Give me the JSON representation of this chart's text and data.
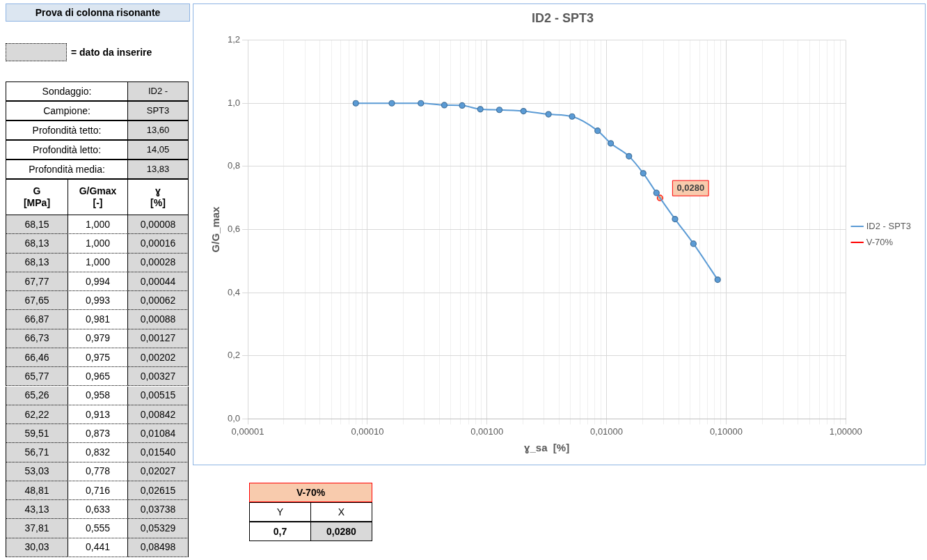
{
  "chart_data": {
    "type": "line",
    "title": "ID2 - SPT3",
    "xlabel": "ɣ_sa  [%]",
    "ylabel": "G/G_max",
    "log": "x",
    "grid": true,
    "legend": "right",
    "marker": "circle",
    "xlim": [
      1e-05,
      1
    ],
    "xticks": [
      {
        "value": 1e-05,
        "label": "0,00001"
      },
      {
        "value": 2e-05,
        "label": null
      },
      {
        "value": 3e-05,
        "label": null
      },
      {
        "value": 4e-05,
        "label": null
      },
      {
        "value": 5e-05,
        "label": null
      },
      {
        "value": 6e-05,
        "label": null
      },
      {
        "value": 7e-05,
        "label": null
      },
      {
        "value": 8e-05,
        "label": null
      },
      {
        "value": 9e-05,
        "label": null
      },
      {
        "value": 0.0001,
        "label": "0,00010"
      },
      {
        "value": 0.0002,
        "label": null
      },
      {
        "value": 0.0003,
        "label": null
      },
      {
        "value": 0.0004,
        "label": null
      },
      {
        "value": 0.0005,
        "label": null
      },
      {
        "value": 0.0006,
        "label": null
      },
      {
        "value": 0.0007,
        "label": null
      },
      {
        "value": 0.0008,
        "label": null
      },
      {
        "value": 0.0009,
        "label": null
      },
      {
        "value": 0.001,
        "label": "0,00100"
      },
      {
        "value": 0.002,
        "label": null
      },
      {
        "value": 0.003,
        "label": null
      },
      {
        "value": 0.004,
        "label": null
      },
      {
        "value": 0.005,
        "label": null
      },
      {
        "value": 0.006,
        "label": null
      },
      {
        "value": 0.007,
        "label": null
      },
      {
        "value": 0.008,
        "label": null
      },
      {
        "value": 0.009,
        "label": null
      },
      {
        "value": 0.01,
        "label": "0,01000"
      },
      {
        "value": 0.02,
        "label": null
      },
      {
        "value": 0.03,
        "label": null
      },
      {
        "value": 0.04,
        "label": null
      },
      {
        "value": 0.05,
        "label": null
      },
      {
        "value": 0.06,
        "label": null
      },
      {
        "value": 0.07,
        "label": null
      },
      {
        "value": 0.08,
        "label": null
      },
      {
        "value": 0.09,
        "label": null
      },
      {
        "value": 0.1,
        "label": "0,10000"
      },
      {
        "value": 0.2,
        "label": null
      },
      {
        "value": 0.3,
        "label": null
      },
      {
        "value": 0.4,
        "label": null
      },
      {
        "value": 0.5,
        "label": null
      },
      {
        "value": 0.6,
        "label": null
      },
      {
        "value": 0.7,
        "label": null
      },
      {
        "value": 0.8,
        "label": null
      },
      {
        "value": 0.9,
        "label": null
      },
      {
        "value": 1,
        "label": "1,00000"
      }
    ],
    "ylim": [
      0,
      1.2
    ],
    "yticks": [
      {
        "value": 0,
        "label": "0,0"
      },
      {
        "value": 0.2,
        "label": "0,2"
      },
      {
        "value": 0.4,
        "label": "0,4"
      },
      {
        "value": 0.6,
        "label": "0,6"
      },
      {
        "value": 0.8,
        "label": "0,8"
      },
      {
        "value": 1,
        "label": "1,0"
      },
      {
        "value": 1.2,
        "label": "1,2"
      }
    ],
    "series": [
      {
        "name": "ID2 - SPT3",
        "color": "#5b9bd5",
        "x": [
          8e-05,
          0.00016,
          0.00028,
          0.00044,
          0.00062,
          0.00088,
          0.00127,
          0.00202,
          0.00327,
          0.00515,
          0.00842,
          0.01084,
          0.0154,
          0.02027,
          0.02615,
          0.03738,
          0.05329,
          0.08498
        ],
        "values": [
          1.0,
          1.0,
          1.0,
          0.994,
          0.993,
          0.981,
          0.979,
          0.975,
          0.965,
          0.958,
          0.913,
          0.873,
          0.832,
          0.778,
          0.716,
          0.633,
          0.555,
          0.441
        ]
      },
      {
        "name": "V-70%",
        "type": "scatter",
        "color": "#ff0000",
        "x": [
          0.028
        ],
        "values": [
          0.7
        ]
      }
    ],
    "annotations": [
      "Prova di colonna risonante",
      "= dato da inserire",
      "Sondaggio:",
      "ID2 -",
      "Campione:",
      "SPT3",
      "Profondità tetto:",
      "13,60",
      "Profondità letto:",
      "14,05",
      "Profondità media:",
      "13,83",
      "G\n[MPa]",
      "G/Gmax\n[-]",
      "ɣ\n[%]",
      "68,15",
      "1,000",
      "0,00008",
      "68,13",
      "1,000",
      "0,00016",
      "68,13",
      "1,000",
      "0,00028",
      "67,77",
      "0,994",
      "0,00044",
      "67,65",
      "0,993",
      "0,00062",
      "66,87",
      "0,981",
      "0,00088",
      "66,73",
      "0,979",
      "0,00127",
      "66,46",
      "0,975",
      "0,00202",
      "65,77",
      "0,965",
      "0,00327",
      "65,26",
      "0,958",
      "0,00515",
      "62,22",
      "0,913",
      "0,00842",
      "59,51",
      "0,873",
      "0,01084",
      "56,71",
      "0,832",
      "0,01540",
      "53,03",
      "0,778",
      "0,02027",
      "48,81",
      "0,716",
      "0,02615",
      "43,13",
      "0,633",
      "0,03738",
      "37,81",
      "0,555",
      "0,05329",
      "30,03",
      "0,441",
      "0,08498",
      "V-70%",
      "Y",
      "X",
      "0,7",
      "0,0280",
      {
        "text": "0,0280",
        "x": 0.028,
        "y": 0.7
      }
    ]
  }
}
